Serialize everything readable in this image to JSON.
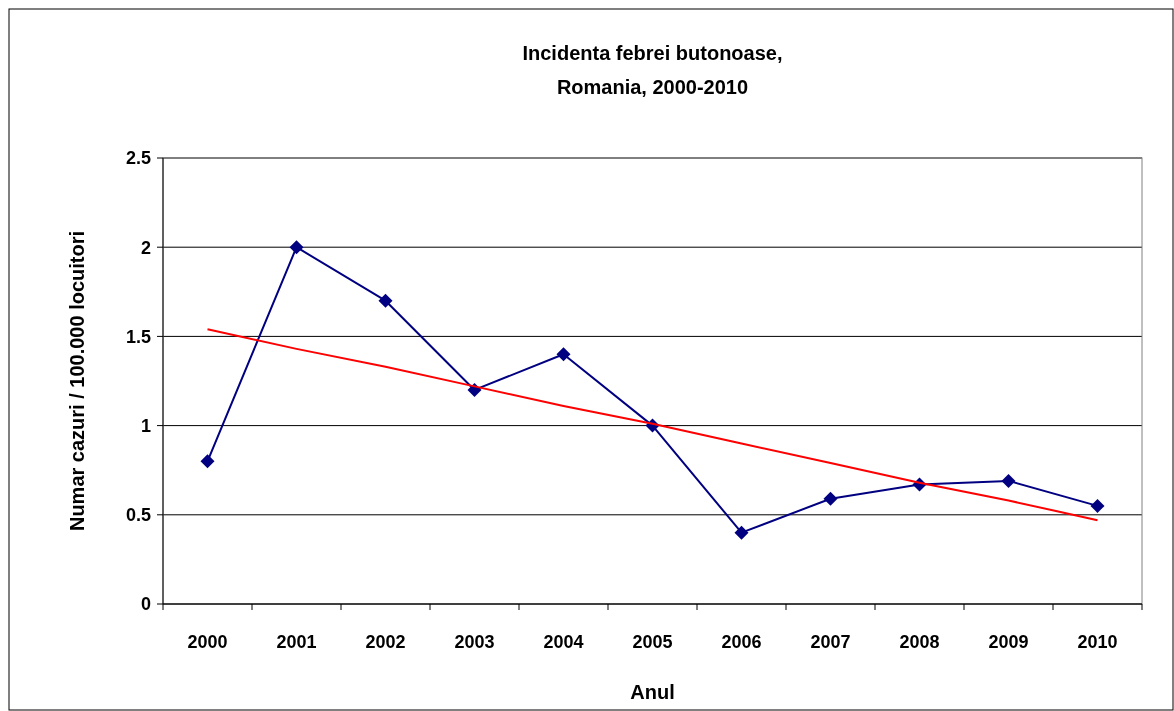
{
  "chart_data": {
    "type": "line",
    "title": "Incidenta febrei butonoase,\nRomania, 2000-2010",
    "xlabel": "Anul",
    "ylabel": "Numar cazuri / 100.000 locuitori",
    "categories": [
      "2000",
      "2001",
      "2002",
      "2003",
      "2004",
      "2005",
      "2006",
      "2007",
      "2008",
      "2009",
      "2010"
    ],
    "series": [
      {
        "color": "#000080",
        "values": [
          0.8,
          2.0,
          1.7,
          1.2,
          1.4,
          1.0,
          0.4,
          0.59,
          0.67,
          0.69,
          0.55
        ]
      },
      {
        "type": "line",
        "color": "#ff0000",
        "values": [
          1.54,
          1.43,
          1.33,
          1.22,
          1.11,
          1.01,
          0.9,
          0.79,
          0.68,
          0.58,
          0.47
        ],
        "marker": "none"
      }
    ],
    "ylim": [
      0,
      2.5
    ],
    "yticks": [
      0,
      0.5,
      1,
      1.5,
      2,
      2.5
    ],
    "grid": "y",
    "marker": "diamond",
    "line_style": "solid"
  }
}
